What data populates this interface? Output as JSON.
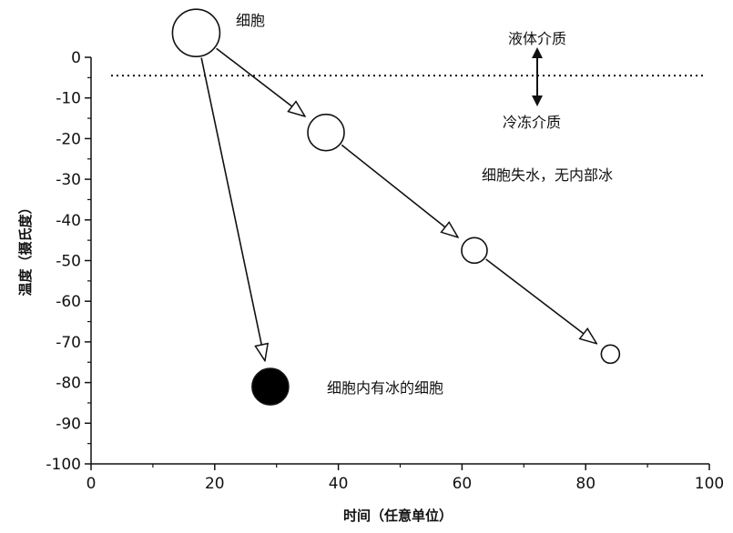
{
  "chart_data": {
    "type": "diagram",
    "xlabel": "时间（任意单位）",
    "ylabel": "温度（摄氏度）",
    "xlim": [
      0,
      100
    ],
    "ylim": [
      -100,
      0
    ],
    "x_ticks": [
      "0",
      "20",
      "40",
      "60",
      "80",
      "100"
    ],
    "y_ticks": [
      "0",
      "-10",
      "-20",
      "-30",
      "-40",
      "-50",
      "-60",
      "-70",
      "-80",
      "-90",
      "-100"
    ],
    "freezing_line_y": -4.5,
    "cells": [
      {
        "id": "start",
        "x": 17,
        "y": 6,
        "size": "large",
        "filled": false
      },
      {
        "id": "slow-1",
        "x": 38,
        "y": -18.5,
        "size": "medium",
        "filled": false
      },
      {
        "id": "slow-2",
        "x": 62,
        "y": -47.5,
        "size": "small",
        "filled": false
      },
      {
        "id": "slow-3",
        "x": 84,
        "y": -73,
        "size": "tiny",
        "filled": false
      },
      {
        "id": "fast-end",
        "x": 29,
        "y": -81,
        "size": "medium",
        "filled": true
      }
    ],
    "arrows": [
      {
        "from": "start",
        "to": "slow-1"
      },
      {
        "from": "slow-1",
        "to": "slow-2"
      },
      {
        "from": "slow-2",
        "to": "slow-3"
      },
      {
        "from": "start",
        "to": "fast-end"
      }
    ]
  },
  "labels": {
    "cell": "细胞",
    "liquid_medium": "液体介质",
    "frozen_medium": "冷冻介质",
    "dehydrated": "细胞失水，无内部冰",
    "intracellular_ice": "细胞内有冰的细胞"
  }
}
